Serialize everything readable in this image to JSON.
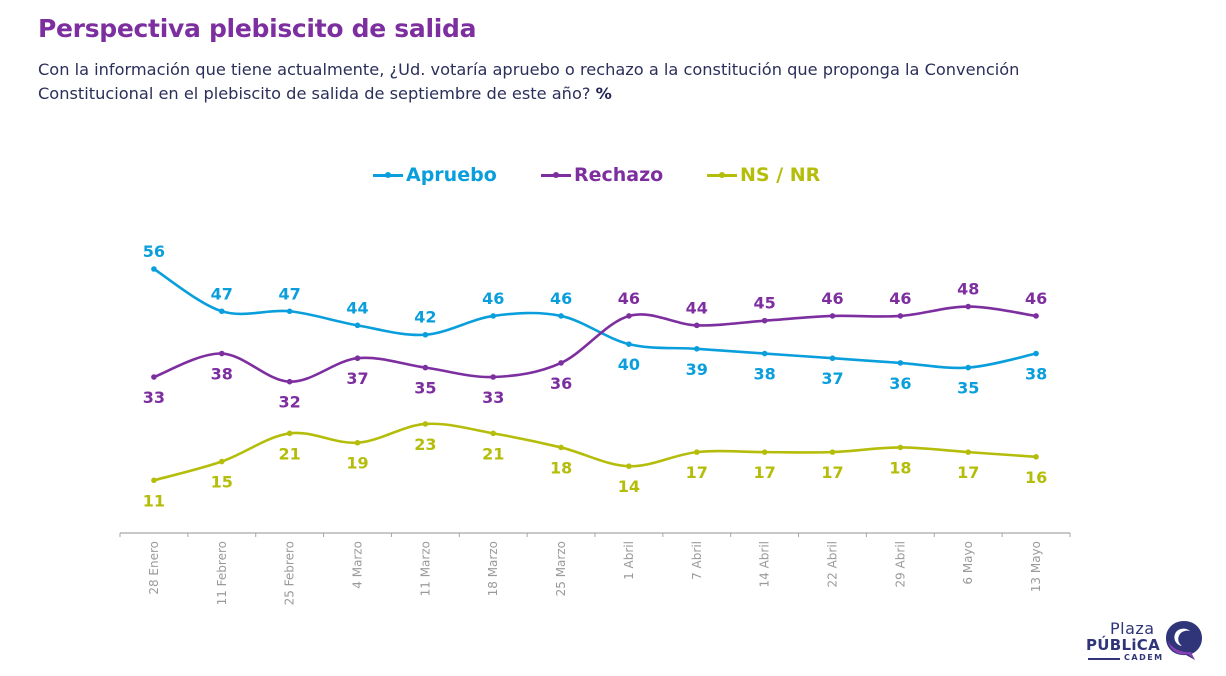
{
  "header": {
    "title": "Perspectiva plebiscito de salida",
    "subtitle": "Con la información que tiene actualmente, ¿Ud. votaría apruebo o rechazo a la constitución que proponga la Convención Constitucional en el plebiscito de salida de septiembre de este año?",
    "subtitle_unit": "%"
  },
  "logo": {
    "line1": "Plaza",
    "line2": "PÚBLiCA",
    "line3": "CADEM"
  },
  "chart_data": {
    "type": "line",
    "title": "Perspectiva plebiscito de salida",
    "xlabel": "",
    "ylabel": "%",
    "ylim": [
      0,
      60
    ],
    "grid": false,
    "legend_position": "top-center",
    "smooth": true,
    "categories": [
      "28 Enero",
      "11 Febrero",
      "25 Febrero",
      "4 Marzo",
      "11 Marzo",
      "18 Marzo",
      "25 Marzo",
      "1 Abril",
      "7 Abril",
      "14 Abril",
      "22 Abril",
      "29 Abril",
      "6 Mayo",
      "13 Mayo"
    ],
    "series": [
      {
        "name": "Apruebo",
        "color": "#0a9fdc",
        "values": [
          56,
          47,
          47,
          44,
          42,
          46,
          46,
          40,
          39,
          38,
          37,
          36,
          35,
          38
        ],
        "label_position": [
          "above",
          "above",
          "above",
          "above",
          "above",
          "above",
          "above",
          "below",
          "below",
          "below",
          "below",
          "below",
          "below",
          "below"
        ]
      },
      {
        "name": "Rechazo",
        "color": "#7d2fa0",
        "values": [
          33,
          38,
          32,
          37,
          35,
          33,
          36,
          46,
          44,
          45,
          46,
          46,
          48,
          46
        ],
        "label_position": [
          "below",
          "below",
          "below",
          "below",
          "below",
          "below",
          "below",
          "above",
          "above",
          "above",
          "above",
          "above",
          "above",
          "above"
        ]
      },
      {
        "name": "NS / NR",
        "color": "#b5bd0b",
        "values": [
          11,
          15,
          21,
          19,
          23,
          21,
          18,
          14,
          17,
          17,
          17,
          18,
          17,
          16
        ],
        "label_position": [
          "below",
          "below",
          "below",
          "below",
          "below",
          "below",
          "below",
          "below",
          "below",
          "below",
          "below",
          "below",
          "below",
          "below"
        ]
      }
    ]
  }
}
